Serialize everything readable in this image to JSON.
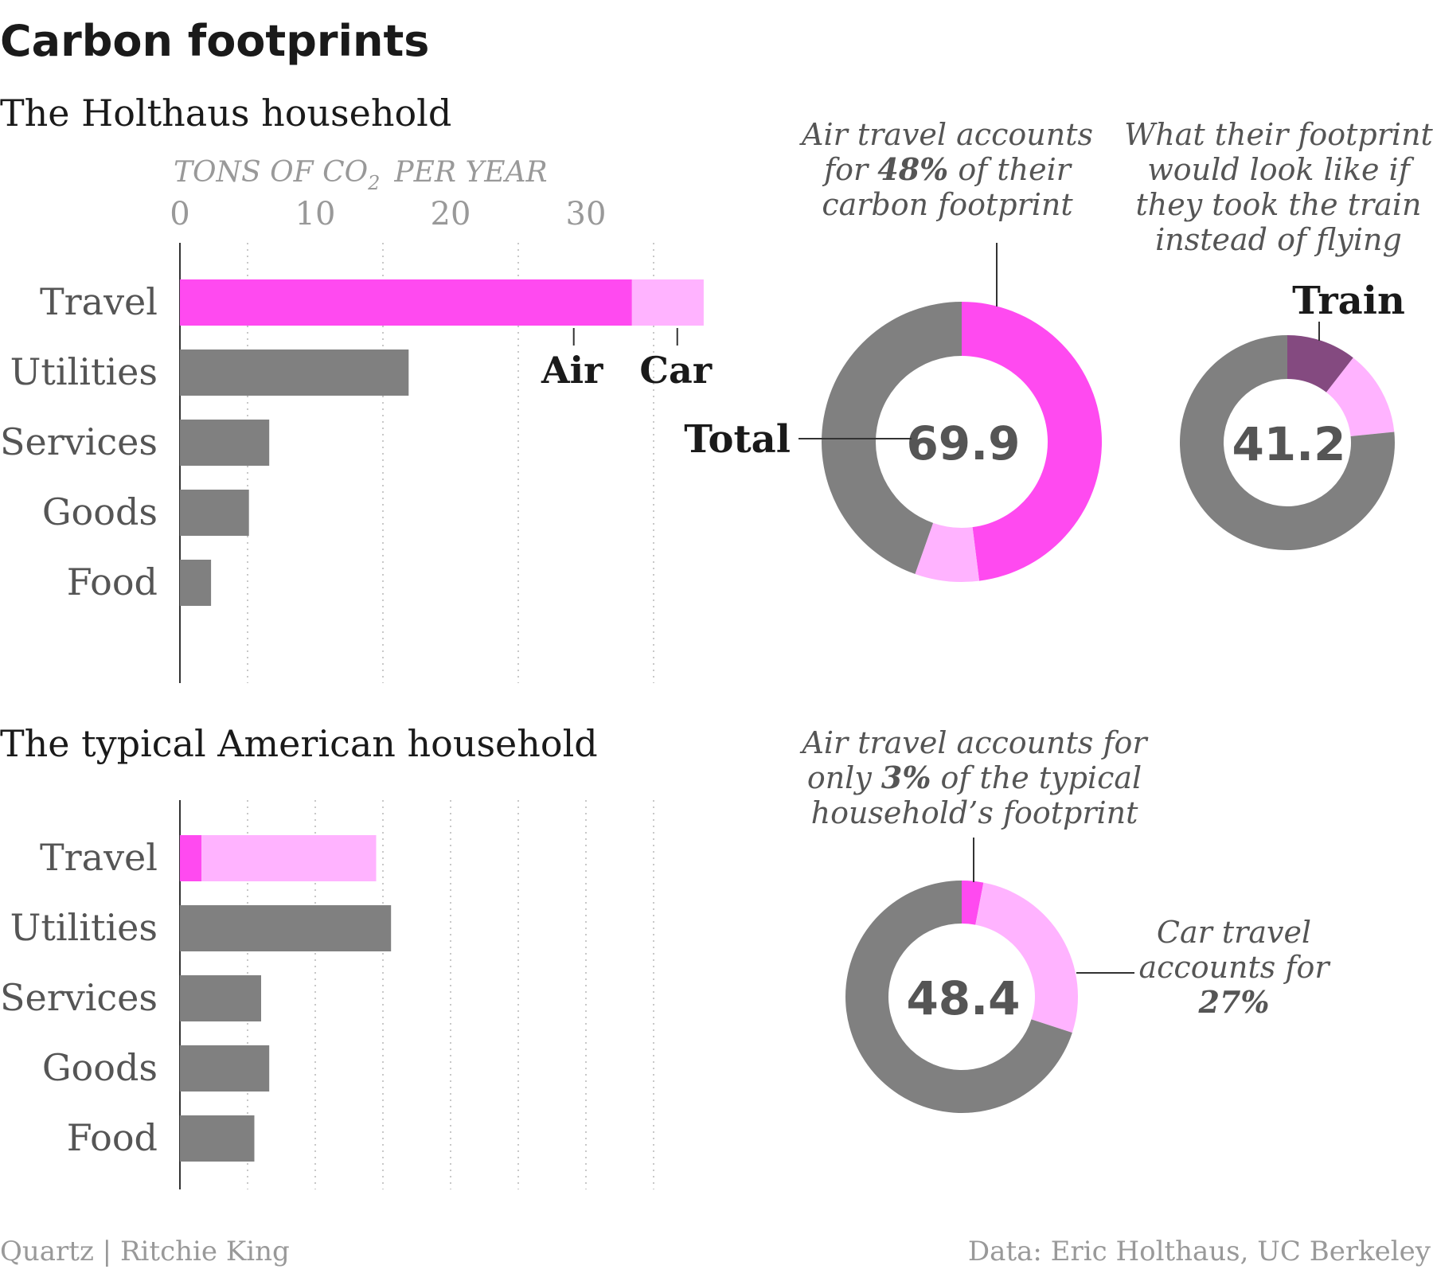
{
  "title": "Carbon footprints",
  "axis_title": "TONS OF CO",
  "axis_title_sub": "2",
  "axis_title_rest": "PER YEAR",
  "source_left": "Quartz | Ritchie King",
  "source_right": "Data: Eric Holthaus, UC Berkeley",
  "colors": {
    "air": "#ff4af0",
    "car": "#ffb3ff",
    "train": "#844a80",
    "other": "#808080",
    "text": "#1a1a1a",
    "muted": "#999999",
    "grid": "#c8c8c8"
  },
  "chart_data": [
    {
      "type": "bar",
      "panel": "holthaus",
      "subtitle": "The Holthaus household",
      "orientation": "horizontal",
      "stacked": true,
      "categories": [
        "Travel",
        "Utilities",
        "Services",
        "Goods",
        "Food"
      ],
      "series": [
        {
          "name": "Air",
          "color_key": "air",
          "values": [
            33.4,
            0,
            0,
            0,
            0
          ]
        },
        {
          "name": "Car",
          "color_key": "car",
          "values": [
            5.3,
            0,
            0,
            0,
            0
          ]
        },
        {
          "name": "",
          "color_key": "other",
          "values": [
            0,
            16.9,
            6.6,
            5.1,
            2.3
          ]
        }
      ],
      "xlim": [
        0,
        35
      ],
      "xticks": [
        0,
        10,
        20,
        30
      ],
      "grid_values": [
        5,
        15,
        25,
        35
      ],
      "grid": true
    },
    {
      "type": "pie",
      "donut": true,
      "panel": "holthaus-total",
      "center_label": "69.9",
      "side_label": "Total",
      "annotation_lines": [
        "Air travel accounts",
        "for |48%| of their",
        "carbon footprint"
      ],
      "slices": [
        {
          "name": "Air",
          "percent": 48,
          "color_key": "air"
        },
        {
          "name": "Car",
          "percent": 7.4,
          "color_key": "car"
        },
        {
          "name": "Other",
          "percent": 44.6,
          "color_key": "other"
        }
      ]
    },
    {
      "type": "pie",
      "donut": true,
      "panel": "holthaus-train",
      "center_label": "41.2",
      "side_label": "Train",
      "annotation_lines": [
        "What their footprint",
        "would look like if",
        "they took the train",
        "instead of flying"
      ],
      "slices": [
        {
          "name": "Train",
          "percent": 10.5,
          "color_key": "train"
        },
        {
          "name": "Car",
          "percent": 12.9,
          "color_key": "car"
        },
        {
          "name": "Other",
          "percent": 76.6,
          "color_key": "other"
        }
      ]
    },
    {
      "type": "bar",
      "panel": "american",
      "subtitle": "The typical American household",
      "orientation": "horizontal",
      "stacked": true,
      "categories": [
        "Travel",
        "Utilities",
        "Services",
        "Goods",
        "Food"
      ],
      "series": [
        {
          "name": "Air",
          "color_key": "air",
          "values": [
            1.6,
            0,
            0,
            0,
            0
          ]
        },
        {
          "name": "Car",
          "color_key": "car",
          "values": [
            12.9,
            0,
            0,
            0,
            0
          ]
        },
        {
          "name": "",
          "color_key": "other",
          "values": [
            0,
            15.6,
            6.0,
            6.6,
            5.5
          ]
        }
      ],
      "xlim": [
        0,
        35
      ],
      "grid_values": [
        5,
        10,
        15,
        20,
        25,
        30,
        35
      ],
      "grid": true
    },
    {
      "type": "pie",
      "donut": true,
      "panel": "american-total",
      "center_label": "48.4",
      "annotation_lines": [
        "Air travel accounts for",
        "only |3%| of the typical",
        "household’s footprint"
      ],
      "side_annotation_lines": [
        "Car travel",
        "accounts for",
        "|27%|"
      ],
      "slices": [
        {
          "name": "Air",
          "percent": 3,
          "color_key": "air"
        },
        {
          "name": "Car",
          "percent": 27,
          "color_key": "car"
        },
        {
          "name": "Other",
          "percent": 70,
          "color_key": "other"
        }
      ]
    }
  ]
}
